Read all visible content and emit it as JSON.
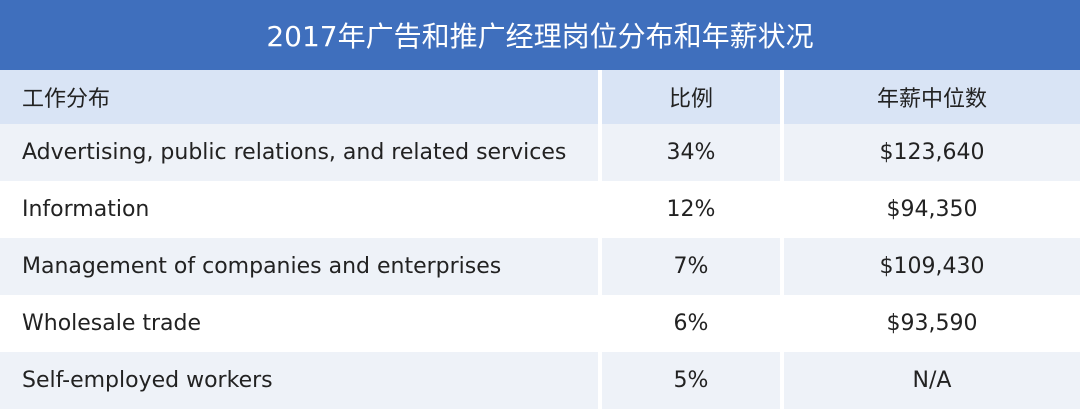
{
  "title": "2017年广告和推广经理岗位分布和年薪状况",
  "table": {
    "header": [
      "工作分布",
      "比例",
      "年薪中位数"
    ],
    "rows": [
      [
        "Advertising, public relations, and related services",
        "34%",
        "$123,640"
      ],
      [
        "Information",
        "12%",
        "$94,350"
      ],
      [
        "Management of companies and enterprises",
        "7%",
        "$109,430"
      ],
      [
        "Wholesale trade",
        "6%",
        "$93,590"
      ],
      [
        "Self-employed workers",
        "5%",
        "N/A"
      ]
    ]
  }
}
